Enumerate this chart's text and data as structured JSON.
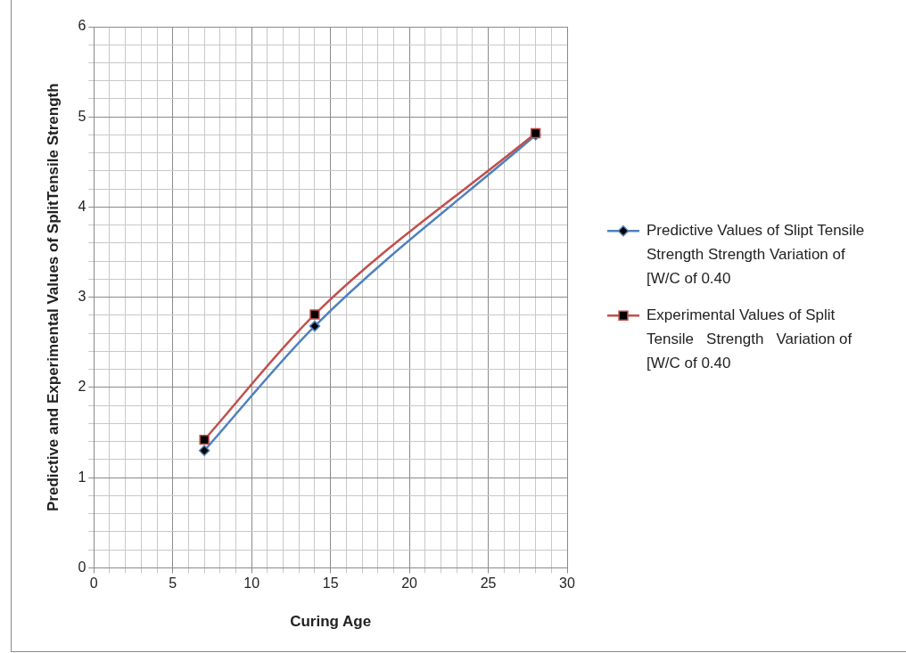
{
  "chart_data": {
    "type": "line",
    "xlabel": "Curing Age",
    "ylabel": "Predictive and Experimental Values of SplitTensile Strength",
    "x": [
      7,
      14,
      28
    ],
    "series": [
      {
        "name": "Predictive Values of Slipt Tensile Strength Strength Variation of [W/C of 0.40",
        "color": "#4f81bd",
        "marker": "diamond",
        "values": [
          1.3,
          2.68,
          4.8
        ]
      },
      {
        "name": "Experimental Values of Split Tensile   Strength   Variation of [W/C of 0.40",
        "color": "#c0504d",
        "marker": "square",
        "values": [
          1.42,
          2.81,
          4.82
        ]
      }
    ],
    "xlim": [
      0,
      30
    ],
    "xticks": [
      0,
      {
        "value": 1,
        "label": null
      },
      {
        "value": 2,
        "label": null
      },
      {
        "value": 3,
        "label": null
      },
      {
        "value": 4,
        "label": null
      },
      5,
      {
        "value": 6,
        "label": null
      },
      {
        "value": 7,
        "label": null
      },
      {
        "value": 8,
        "label": null
      },
      {
        "value": 9,
        "label": null
      },
      10,
      {
        "value": 11,
        "label": null
      },
      {
        "value": 12,
        "label": null
      },
      {
        "value": 13,
        "label": null
      },
      {
        "value": 14,
        "label": null
      },
      15,
      {
        "value": 16,
        "label": null
      },
      {
        "value": 17,
        "label": null
      },
      {
        "value": 18,
        "label": null
      },
      {
        "value": 19,
        "label": null
      },
      20,
      {
        "value": 21,
        "label": null
      },
      {
        "value": 22,
        "label": null
      },
      {
        "value": 23,
        "label": null
      },
      {
        "value": 24,
        "label": null
      },
      25,
      {
        "value": 26,
        "label": null
      },
      {
        "value": 27,
        "label": null
      },
      {
        "value": 28,
        "label": null
      },
      {
        "value": 29,
        "label": null
      },
      30
    ],
    "ylim": [
      0,
      6
    ],
    "yticks": [
      0,
      {
        "value": 0.2,
        "label": null
      },
      {
        "value": 0.4,
        "label": null
      },
      {
        "value": 0.6,
        "label": null
      },
      {
        "value": 0.8,
        "label": null
      },
      1,
      {
        "value": 1.2,
        "label": null
      },
      {
        "value": 1.4,
        "label": null
      },
      {
        "value": 1.6,
        "label": null
      },
      {
        "value": 1.8,
        "label": null
      },
      2,
      {
        "value": 2.2,
        "label": null
      },
      {
        "value": 2.4,
        "label": null
      },
      {
        "value": 2.6,
        "label": null
      },
      {
        "value": 2.8,
        "label": null
      },
      3,
      {
        "value": 3.2,
        "label": null
      },
      {
        "value": 3.4,
        "label": null
      },
      {
        "value": 3.6,
        "label": null
      },
      {
        "value": 3.8,
        "label": null
      },
      4,
      {
        "value": 4.2,
        "label": null
      },
      {
        "value": 4.4,
        "label": null
      },
      {
        "value": 4.6,
        "label": null
      },
      {
        "value": 4.8,
        "label": null
      },
      5,
      {
        "value": 5.2,
        "label": null
      },
      {
        "value": 5.4,
        "label": null
      },
      {
        "value": 5.6,
        "label": null
      },
      {
        "value": 5.8,
        "label": null
      },
      6
    ],
    "grid": true,
    "legend": "right",
    "line_style": "solid"
  }
}
